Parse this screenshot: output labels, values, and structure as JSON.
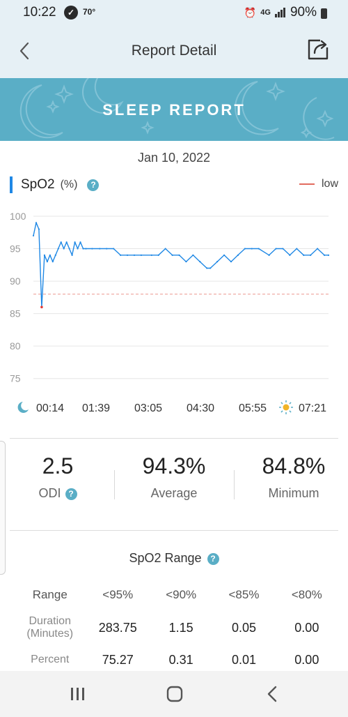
{
  "status_bar": {
    "time": "10:22",
    "temperature": "70°",
    "network": "4G",
    "battery": "90%"
  },
  "app_bar": {
    "title": "Report Detail"
  },
  "banner": {
    "title": "SLEEP REPORT"
  },
  "report": {
    "date": "Jan 10, 2022",
    "metric_label": "SpO2",
    "metric_unit": "(%)",
    "legend_label": "low"
  },
  "chart_data": {
    "type": "line",
    "title": "SpO2",
    "ylabel": "(%)",
    "ylim": [
      74,
      100
    ],
    "yticks": [
      100,
      95,
      90,
      85,
      80,
      75
    ],
    "threshold": 88,
    "x_tick_labels": [
      "00:14",
      "01:39",
      "03:05",
      "04:30",
      "05:55",
      "07:21"
    ],
    "series": [
      {
        "name": "SpO2",
        "x": [
          "00:14",
          "00:18",
          "00:22",
          "00:26",
          "00:30",
          "00:34",
          "00:38",
          "00:42",
          "00:46",
          "00:50",
          "00:54",
          "00:58",
          "01:02",
          "01:06",
          "01:10",
          "01:14",
          "01:18",
          "01:22",
          "01:26",
          "01:30",
          "01:39",
          "01:50",
          "02:00",
          "02:10",
          "02:20",
          "02:30",
          "02:40",
          "02:50",
          "03:05",
          "03:15",
          "03:25",
          "03:35",
          "03:45",
          "03:55",
          "04:05",
          "04:15",
          "04:25",
          "04:30",
          "04:40",
          "04:50",
          "05:00",
          "05:10",
          "05:20",
          "05:30",
          "05:40",
          "05:55",
          "06:05",
          "06:15",
          "06:25",
          "06:35",
          "06:45",
          "06:55",
          "07:05",
          "07:15",
          "07:21"
        ],
        "values": [
          97,
          99,
          98,
          86,
          94,
          93,
          94,
          93,
          94,
          95,
          96,
          95,
          96,
          95,
          94,
          96,
          95,
          96,
          95,
          95,
          95,
          95,
          95,
          95,
          94,
          94,
          94,
          94,
          94,
          94,
          95,
          94,
          94,
          93,
          94,
          93,
          92,
          92,
          93,
          94,
          93,
          94,
          95,
          95,
          95,
          94,
          95,
          95,
          94,
          95,
          94,
          94,
          95,
          94,
          94
        ]
      },
      {
        "name": "low",
        "x": [
          "00:14",
          "07:21"
        ],
        "values": [
          88,
          88
        ]
      }
    ],
    "colors": {
      "line": "#1f88e5",
      "low": "#e26b5f",
      "dip": "#e53935"
    }
  },
  "summary": {
    "odi": {
      "value": "2.5",
      "label": "ODI"
    },
    "average": {
      "value": "94.3%",
      "label": "Average"
    },
    "minimum": {
      "value": "84.8%",
      "label": "Minimum"
    }
  },
  "range_table": {
    "title": "SpO2 Range",
    "header_label": "Range",
    "columns": [
      "<95%",
      "<90%",
      "<85%",
      "<80%"
    ],
    "rows": [
      {
        "label_line1": "Duration",
        "label_line2": "(Minutes)",
        "values": [
          "283.75",
          "1.15",
          "0.05",
          "0.00"
        ]
      },
      {
        "label_line1": "Percent",
        "label_line2": "",
        "values": [
          "75.27",
          "0.31",
          "0.01",
          "0.00"
        ]
      }
    ]
  },
  "colors": {
    "accent": "#1f88e5",
    "banner": "#5aaec6",
    "header_bg": "#e6f0f5",
    "low": "#e26b5f"
  }
}
